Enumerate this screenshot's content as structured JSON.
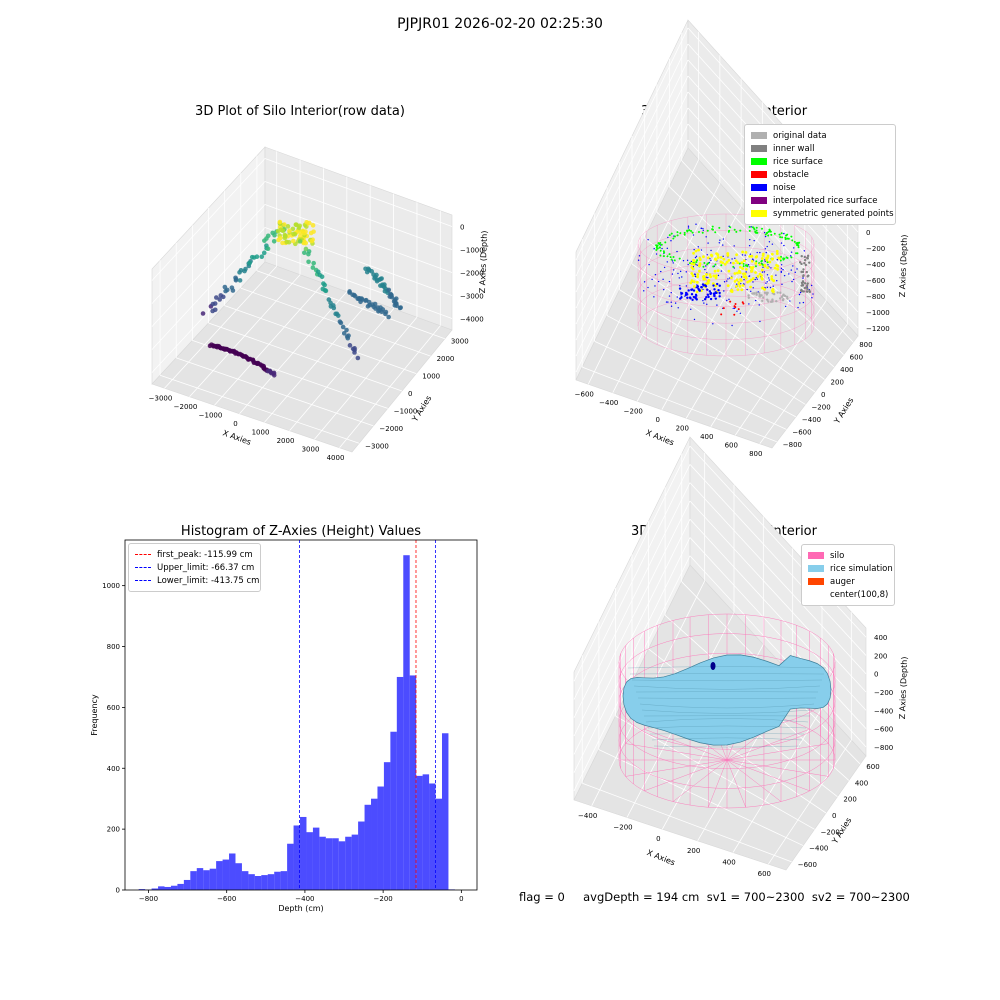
{
  "suptitle": "PJPJR01 2026-02-20 02:25:30",
  "status_line": "flag = 0     avgDepth = 194 cm  sv1 = 700~2300  sv2 = 700~2300",
  "colors": {
    "hist": "#0000ff",
    "first_peak": "#ff0000",
    "limits": "#0000ff",
    "silo": "#ff69b4",
    "rice": "#87ceeb",
    "auger": "#ff4500",
    "rice_surface": "#00ff00",
    "obstacle": "#ff0000",
    "noise": "#0000ff",
    "inner_wall": "#808080",
    "original": "#b0b0b0",
    "interp": "#800080",
    "symmetric": "#ffff00"
  },
  "chart_data": [
    {
      "type": "scatter3d",
      "title": "3D Plot of Silo Interior(row data)",
      "xlabel": "X Axies",
      "ylabel": "Y Axies",
      "zlabel": "Z Axies (Depth)",
      "xticks": [
        "−3000",
        "−2000",
        "−1000",
        "0",
        "1000",
        "2000",
        "3000",
        "4000"
      ],
      "yticks": [
        "−3000",
        "−2000",
        "−1000",
        "0",
        "1000",
        "2000",
        "3000"
      ],
      "zticks": [
        "0",
        "−1000",
        "−2000",
        "−3000",
        "−4000"
      ],
      "colormap": "viridis"
    },
    {
      "type": "scatter3d",
      "title": "3D classify of Silo Interior",
      "xlabel": "X Axies",
      "ylabel": "Y Axies",
      "zlabel": "Z Axies (Depth)",
      "xticks": [
        "−600",
        "−400",
        "−200",
        "0",
        "200",
        "400",
        "600",
        "800"
      ],
      "yticks": [
        "−800",
        "−600",
        "−400",
        "−200",
        "0",
        "200",
        "400",
        "600",
        "800"
      ],
      "zticks": [
        "200",
        "0",
        "−200",
        "−400",
        "−600",
        "−800",
        "−1000",
        "−1200"
      ],
      "legend": [
        {
          "label": "original data",
          "color": "#b0b0b0"
        },
        {
          "label": "inner wall",
          "color": "#808080"
        },
        {
          "label": "rice surface",
          "color": "#00ff00"
        },
        {
          "label": "obstacle",
          "color": "#ff0000"
        },
        {
          "label": "noise",
          "color": "#0000ff"
        },
        {
          "label": "interpolated rice surface",
          "color": "#800080"
        },
        {
          "label": "symmetric generated points",
          "color": "#ffff00"
        }
      ]
    },
    {
      "type": "bar",
      "title": "Histogram of Z-Axies (Height) Values",
      "xlabel": "Depth (cm)",
      "ylabel": "Frequency",
      "xlim": [
        -860,
        40
      ],
      "ylim": [
        0,
        1150
      ],
      "xticks": [
        -800,
        -600,
        -400,
        -200,
        0
      ],
      "xtick_labels": [
        "−800",
        "−600",
        "−400",
        "−200",
        "0"
      ],
      "yticks": [
        0,
        200,
        400,
        600,
        800,
        1000
      ],
      "bin_width": 16.5,
      "bin_lefts": [
        -825,
        -808.5,
        -792,
        -775.5,
        -759,
        -742.5,
        -726,
        -709.5,
        -693,
        -676.5,
        -660,
        -643.5,
        -627,
        -610.5,
        -594,
        -577.5,
        -561,
        -544.5,
        -528,
        -511.5,
        -495,
        -478.5,
        -462,
        -445.5,
        -429,
        -412.5,
        -396,
        -379.5,
        -363,
        -346.5,
        -330,
        -313.5,
        -297,
        -280.5,
        -264,
        -247.5,
        -231,
        -214.5,
        -198,
        -181.5,
        -165,
        -148.5,
        -132,
        -115.5,
        -99,
        -82.5,
        -66,
        -49.5,
        -33,
        -16.5
      ],
      "values": [
        3,
        1,
        5,
        12,
        10,
        14,
        20,
        33,
        62,
        72,
        65,
        70,
        95,
        100,
        120,
        88,
        62,
        52,
        46,
        49,
        52,
        60,
        62,
        152,
        212,
        240,
        190,
        205,
        175,
        170,
        170,
        160,
        175,
        182,
        225,
        280,
        300,
        340,
        420,
        520,
        700,
        1100,
        705,
        375,
        380,
        350,
        300,
        515,
        2,
        0
      ],
      "lines": [
        {
          "label": "first_peak: -115.99 cm",
          "x": -115.99,
          "color": "#ff0000"
        },
        {
          "label": "Upper_limit: -66.37 cm",
          "x": -66.37,
          "color": "#0000ff"
        },
        {
          "label": "Lower_limit: -413.75 cm",
          "x": -413.75,
          "color": "#0000ff"
        }
      ],
      "legend_position": "upper-left"
    },
    {
      "type": "surface3d",
      "title": "3D simulation of Silo Interior",
      "xlabel": "X Axies",
      "ylabel": "Y Axies",
      "zlabel": "Z Axies (Depth)",
      "xticks": [
        "−400",
        "−200",
        "0",
        "200",
        "400",
        "600"
      ],
      "yticks": [
        "−600",
        "−400",
        "−200",
        "0",
        "200",
        "400",
        "600"
      ],
      "zticks": [
        "400",
        "200",
        "0",
        "−200",
        "−400",
        "−600",
        "−800"
      ],
      "legend": [
        {
          "label": "silo",
          "color": "#ff69b4"
        },
        {
          "label": "rice simulation",
          "color": "#87ceeb"
        },
        {
          "label": "auger",
          "color": "#ff4500"
        },
        {
          "label": "center(100,8)",
          "color": "#ffffff"
        }
      ]
    }
  ]
}
